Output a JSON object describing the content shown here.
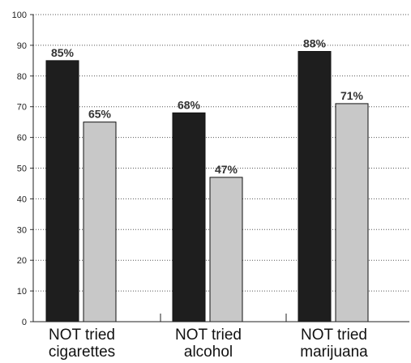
{
  "chart_data": {
    "type": "bar",
    "categories": [
      "NOT tried cigarettes",
      "NOT tried alcohol",
      "NOT tried marijuana"
    ],
    "category_label_lines": [
      [
        "NOT tried",
        "cigarettes"
      ],
      [
        "NOT tried",
        "alcohol"
      ],
      [
        "NOT tried",
        "marijuana"
      ]
    ],
    "series": [
      {
        "values": [
          85,
          68,
          88
        ],
        "labels": [
          "85%",
          "68%",
          "88%"
        ],
        "color": "#1e1e1e"
      },
      {
        "values": [
          65,
          47,
          71
        ],
        "labels": [
          "65%",
          "47%",
          "71%"
        ],
        "color": "#c8c8c8"
      }
    ],
    "yticks": [
      "0",
      "10",
      "20",
      "30",
      "40",
      "50",
      "60",
      "70",
      "80",
      "90",
      "100"
    ],
    "ylim": [
      0,
      100
    ],
    "grid": "dotted horizontal",
    "legend": "none"
  }
}
